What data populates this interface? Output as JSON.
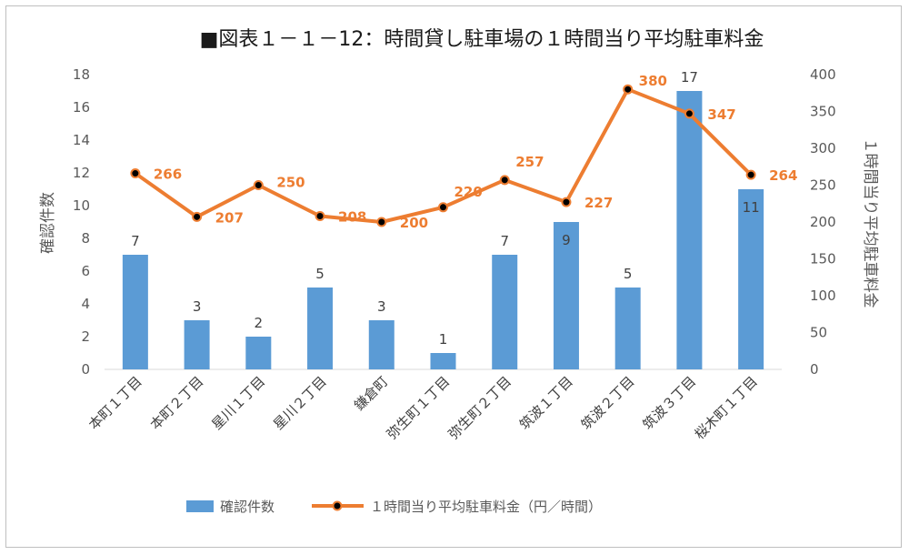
{
  "chart_data": {
    "type": "bar",
    "title": "■図表１－１－12：時間貸し駐車場の１時間当り平均駐車料金",
    "categories": [
      "本町１丁目",
      "本町２丁目",
      "星川１丁目",
      "星川２丁目",
      "鎌倉町",
      "弥生町１丁目",
      "弥生町２丁目",
      "筑波１丁目",
      "筑波２丁目",
      "筑波３丁目",
      "桜木町１丁目"
    ],
    "series": [
      {
        "name": "確認件数",
        "type": "bar",
        "axis": "left",
        "color": "#5b9bd5",
        "values": [
          7,
          3,
          2,
          5,
          3,
          1,
          7,
          9,
          5,
          17,
          11
        ]
      },
      {
        "name": "１時間当り平均駐車料金（円／時間）",
        "type": "line",
        "axis": "right",
        "color": "#ed7d31",
        "values": [
          266,
          207,
          250,
          208,
          200,
          220,
          257,
          227,
          380,
          347,
          264
        ]
      }
    ],
    "ylabel": "確認件数",
    "y2label": "１時間当り平均駐車料金",
    "ylim": [
      0,
      18
    ],
    "yticks": [
      0,
      2,
      4,
      6,
      8,
      10,
      12,
      14,
      16,
      18
    ],
    "y2lim": [
      0,
      400
    ],
    "y2ticks": [
      0,
      50,
      100,
      150,
      200,
      250,
      300,
      350,
      400
    ],
    "legend": "bottom",
    "grid": false
  }
}
